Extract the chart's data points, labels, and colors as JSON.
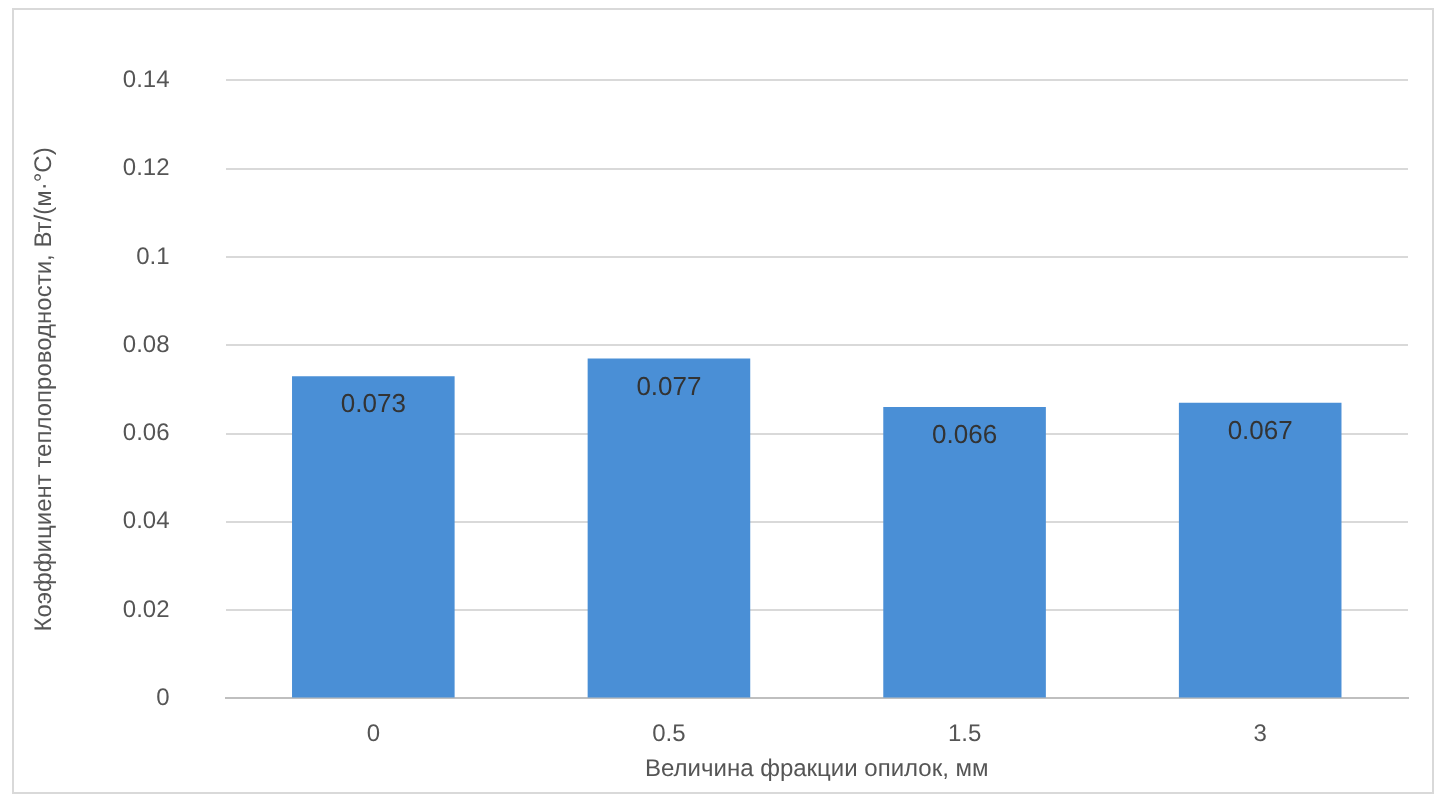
{
  "chart_data": {
    "type": "bar",
    "xlabel": "Величина фракции опилок, мм",
    "ylabel": "Коэффициент теплопроводности, Вт/(м·°C)",
    "categories": [
      "0",
      "0.5",
      "1.5",
      "3"
    ],
    "values": [
      0.073,
      0.077,
      0.066,
      0.067
    ],
    "color": "#4a8fd6",
    "ylim": [
      0,
      0.14
    ],
    "yticks": [
      0,
      0.02,
      0.04,
      0.06,
      0.08,
      0.1,
      0.12,
      0.14
    ],
    "grid": "y",
    "data_labels": true,
    "legend": false
  }
}
